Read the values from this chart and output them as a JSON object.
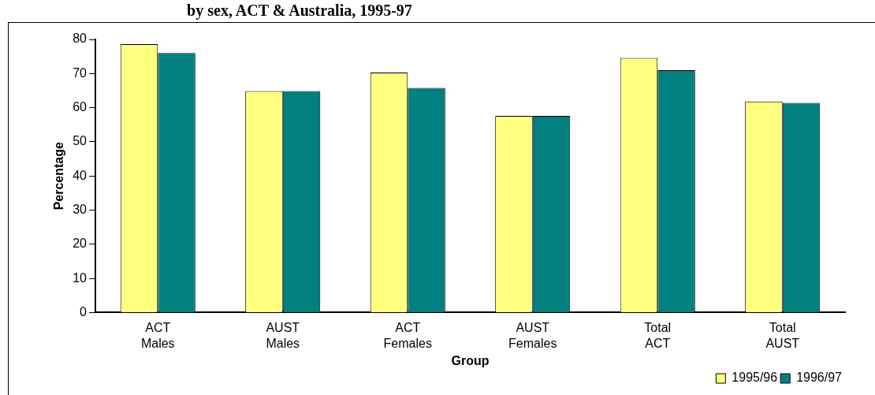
{
  "chart_data": {
    "type": "bar",
    "title": "by sex, ACT & Australia, 1995-97",
    "xlabel": "Group",
    "ylabel": "Percentage",
    "categories": [
      "ACT Males",
      "AUST Males",
      "ACT Females",
      "AUST Females",
      "Total ACT",
      "Total AUST"
    ],
    "series": [
      {
        "name": "1995/96",
        "color": "#ffff80",
        "values": [
          78.6,
          64.9,
          70.3,
          57.6,
          74.6,
          61.8
        ]
      },
      {
        "name": "1996/97",
        "color": "#008080",
        "values": [
          76.0,
          64.9,
          65.8,
          57.6,
          71.0,
          61.4
        ]
      }
    ],
    "ylim": [
      0,
      80
    ],
    "yticks": [
      0,
      10,
      20,
      30,
      40,
      50,
      60,
      70,
      80
    ],
    "grid": false,
    "legend": "bottom right"
  }
}
